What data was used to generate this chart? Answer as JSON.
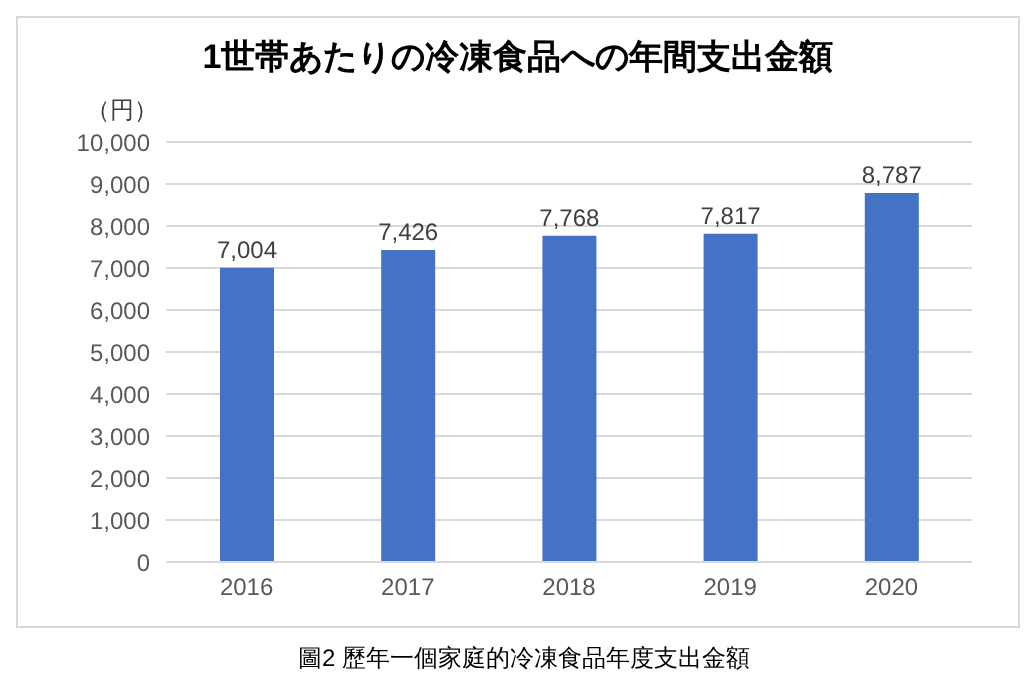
{
  "chart_data": {
    "type": "bar",
    "title": "1世帯あたりの冷凍食品への年間支出金額",
    "ylabel": "（円）",
    "categories": [
      "2016",
      "2017",
      "2018",
      "2019",
      "2020"
    ],
    "values": [
      7004,
      7426,
      7768,
      7817,
      8787
    ],
    "value_labels": [
      "7,004",
      "7,426",
      "7,768",
      "7,817",
      "8,787"
    ],
    "color": "#4472c4",
    "ylim": [
      0,
      10000
    ],
    "yticks": [
      0,
      {
        "value": 1000,
        "label": "1,000"
      },
      {
        "value": 2000,
        "label": "2,000"
      },
      {
        "value": 3000,
        "label": "3,000"
      },
      {
        "value": 4000,
        "label": "4,000"
      },
      {
        "value": 5000,
        "label": "5,000"
      },
      {
        "value": 6000,
        "label": "6,000"
      },
      {
        "value": 7000,
        "label": "7,000"
      },
      {
        "value": 8000,
        "label": "8,000"
      },
      {
        "value": 9000,
        "label": "9,000"
      },
      {
        "value": 10000,
        "label": "10,000"
      }
    ],
    "grid": "y",
    "annotations": [
      "圖2 歷年一個家庭的冷凍食品年度支出金額"
    ]
  }
}
